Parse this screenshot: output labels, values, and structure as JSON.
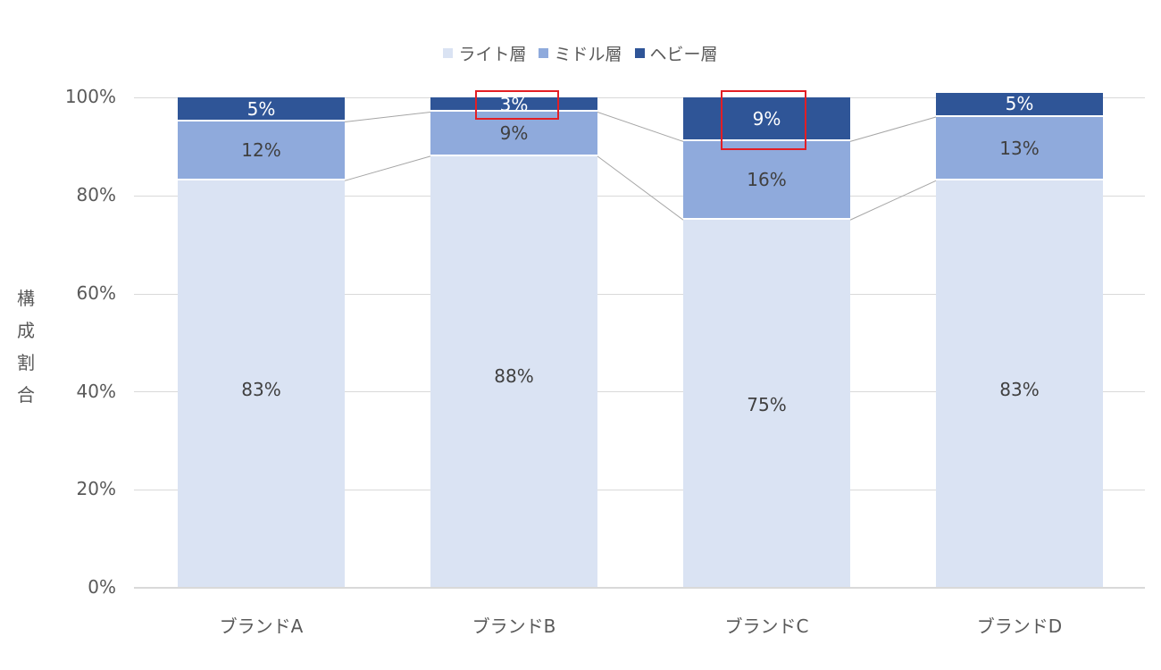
{
  "chart_data": {
    "type": "bar",
    "stacked": "percent",
    "title": "",
    "xlabel": "",
    "ylabel": "構成割合",
    "ylim": [
      0,
      100
    ],
    "yticks": [
      "0%",
      "20%",
      "40%",
      "60%",
      "80%",
      "100%"
    ],
    "categories": [
      "ブランドA",
      "ブランドB",
      "ブランドC",
      "ブランドD"
    ],
    "series": [
      {
        "name": "ライト層",
        "color": "#dae3f3",
        "values": [
          83,
          88,
          75,
          83
        ],
        "labels": [
          "83%",
          "88%",
          "75%",
          "83%"
        ]
      },
      {
        "name": "ミドル層",
        "color": "#8faadc",
        "values": [
          12,
          9,
          16,
          13
        ],
        "labels": [
          "12%",
          "9%",
          "16%",
          "13%"
        ]
      },
      {
        "name": "ヘビー層",
        "color": "#2f5597",
        "values": [
          5,
          3,
          9,
          5
        ],
        "labels": [
          "5%",
          "3%",
          "9%",
          "5%"
        ]
      }
    ],
    "legend_position": "top",
    "grid": true,
    "series_lines": true,
    "annotations": [
      {
        "type": "highlight-box",
        "target": "ブランドB ヘビー層 3%",
        "color": "#e31e24"
      },
      {
        "type": "highlight-box",
        "target": "ブランドC ヘビー層 9%",
        "color": "#e31e24"
      }
    ]
  },
  "legend": {
    "items": [
      {
        "label": "ライト層",
        "color": "#dae3f3"
      },
      {
        "label": "ミドル層",
        "color": "#8faadc"
      },
      {
        "label": "ヘビー層",
        "color": "#2f5597"
      }
    ]
  },
  "axis": {
    "ylabel_chars": [
      "構",
      "成",
      "割",
      "合"
    ],
    "yticks": [
      "100%",
      "80%",
      "60%",
      "40%",
      "20%",
      "0%"
    ]
  }
}
